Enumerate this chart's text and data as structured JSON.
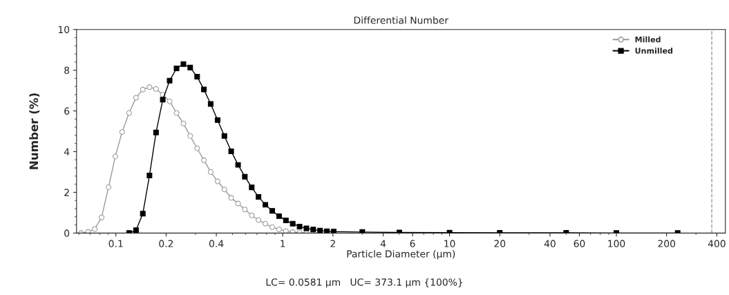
{
  "chart_data": {
    "type": "line",
    "title": "Differential Number",
    "xlabel": "Particle Diameter (µm)",
    "ylabel": "Number (%)",
    "annotations": [
      "LC= 0.0581 µm   UC= 373.1 µm {100%}"
    ],
    "log": "x",
    "xlim": [
      0.0581,
      450
    ],
    "xticks": [
      0.1,
      0.2,
      0.4,
      1,
      2,
      4,
      6,
      10,
      20,
      40,
      60,
      100,
      200,
      400
    ],
    "ylim": [
      0,
      10
    ],
    "yticks": [
      0,
      2,
      4,
      6,
      8,
      10
    ],
    "grid": false,
    "legend": "top right",
    "line_style": "solid",
    "ref_lines": [
      {
        "axis": "x",
        "value": 373.1,
        "color": "#999999",
        "line_style": "dashed"
      }
    ],
    "series": [
      {
        "name": "Milled",
        "color": "#999999",
        "marker": "circle",
        "x": [
          0.0619,
          0.068,
          0.0747,
          0.0821,
          0.0903,
          0.0992,
          0.109,
          0.12,
          0.132,
          0.145,
          0.159,
          0.174,
          0.191,
          0.21,
          0.231,
          0.254,
          0.279,
          0.307,
          0.337,
          0.37,
          0.407,
          0.447,
          0.491,
          0.54,
          0.593,
          0.652,
          0.716,
          0.787,
          0.865,
          0.951,
          1.045,
          1.148,
          1.262,
          1.387
        ],
        "values": [
          0,
          0.05,
          0.2,
          0.77,
          2.25,
          3.76,
          4.97,
          5.9,
          6.65,
          7.05,
          7.17,
          7.08,
          6.8,
          6.47,
          5.9,
          5.38,
          4.77,
          4.16,
          3.58,
          3.0,
          2.54,
          2.14,
          1.73,
          1.45,
          1.16,
          0.87,
          0.64,
          0.46,
          0.29,
          0.18,
          0.1,
          0.05,
          0.02,
          0
        ]
      },
      {
        "name": "Unmilled",
        "color": "#000000",
        "marker": "square",
        "x": [
          0.12,
          0.132,
          0.145,
          0.159,
          0.174,
          0.191,
          0.21,
          0.231,
          0.254,
          0.279,
          0.307,
          0.337,
          0.37,
          0.407,
          0.447,
          0.491,
          0.54,
          0.593,
          0.652,
          0.716,
          0.787,
          0.865,
          0.951,
          1.045,
          1.148,
          1.262,
          1.387,
          1.524,
          1.675,
          1.841,
          2.02,
          3,
          5,
          10,
          20,
          50,
          100,
          233
        ],
        "values": [
          0,
          0.14,
          0.95,
          2.83,
          4.94,
          6.55,
          7.49,
          8.09,
          8.3,
          8.13,
          7.68,
          7.05,
          6.34,
          5.55,
          4.77,
          4.02,
          3.35,
          2.77,
          2.24,
          1.78,
          1.39,
          1.09,
          0.83,
          0.62,
          0.46,
          0.32,
          0.23,
          0.17,
          0.12,
          0.09,
          0.07,
          0.05,
          0.03,
          0.02,
          0.01,
          0.01,
          0,
          0
        ]
      }
    ]
  }
}
